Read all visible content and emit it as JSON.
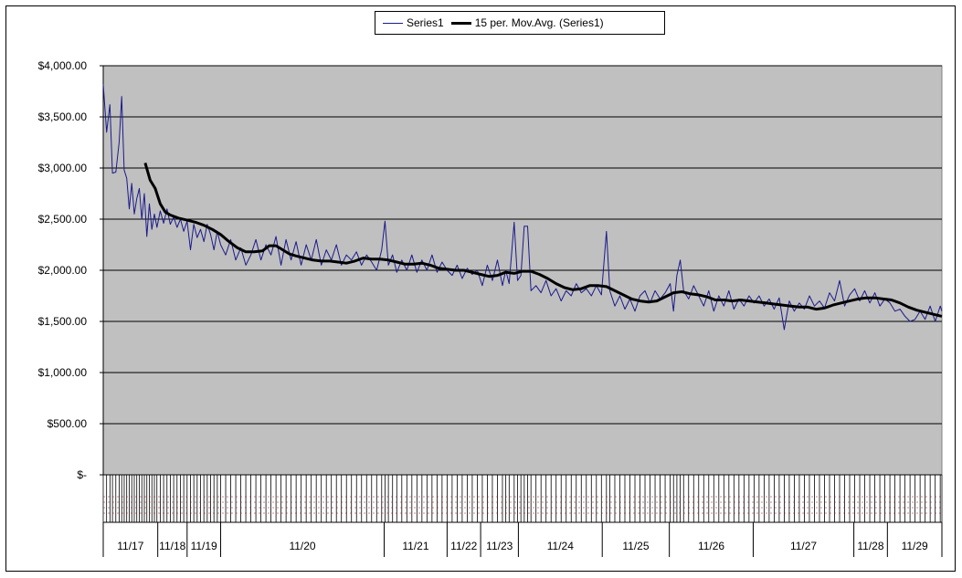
{
  "chart_data": {
    "type": "line",
    "title": "",
    "xlabel": "",
    "ylabel": "",
    "ylim": [
      0,
      4000
    ],
    "y_ticks": [
      0,
      500,
      1000,
      1500,
      2000,
      2500,
      3000,
      3500,
      4000
    ],
    "y_tick_labels": [
      "$-",
      "$500.00",
      "$1,000.00",
      "$1,500.00",
      "$2,000.00",
      "$2,500.00",
      "$3,000.00",
      "$3,500.00",
      "$4,000.00"
    ],
    "grid": true,
    "plot_background": "#c0c0c0",
    "legend_position": "top-center",
    "x_groups": [
      {
        "label": "11/17",
        "start": 0.0,
        "end": 0.065
      },
      {
        "label": "11/18",
        "start": 0.065,
        "end": 0.1
      },
      {
        "label": "11/19",
        "start": 0.1,
        "end": 0.14
      },
      {
        "label": "11/20",
        "start": 0.14,
        "end": 0.335
      },
      {
        "label": "11/21",
        "start": 0.335,
        "end": 0.41
      },
      {
        "label": "11/22",
        "start": 0.41,
        "end": 0.45
      },
      {
        "label": "11/23",
        "start": 0.45,
        "end": 0.495
      },
      {
        "label": "11/24",
        "start": 0.495,
        "end": 0.595
      },
      {
        "label": "11/25",
        "start": 0.595,
        "end": 0.675
      },
      {
        "label": "11/26",
        "start": 0.675,
        "end": 0.775
      },
      {
        "label": "11/27",
        "start": 0.775,
        "end": 0.895
      },
      {
        "label": "11/28",
        "start": 0.895,
        "end": 0.935
      },
      {
        "label": "11/29",
        "start": 0.935,
        "end": 1.0
      }
    ],
    "series": [
      {
        "name": "Series1",
        "color": "#1a1a8c",
        "points": [
          [
            0.0,
            3820
          ],
          [
            0.004,
            3350
          ],
          [
            0.008,
            3620
          ],
          [
            0.011,
            2950
          ],
          [
            0.015,
            2960
          ],
          [
            0.019,
            3250
          ],
          [
            0.022,
            3700
          ],
          [
            0.025,
            2980
          ],
          [
            0.028,
            2900
          ],
          [
            0.031,
            2600
          ],
          [
            0.034,
            2850
          ],
          [
            0.037,
            2550
          ],
          [
            0.04,
            2700
          ],
          [
            0.043,
            2800
          ],
          [
            0.046,
            2500
          ],
          [
            0.049,
            2750
          ],
          [
            0.052,
            2330
          ],
          [
            0.055,
            2650
          ],
          [
            0.058,
            2400
          ],
          [
            0.061,
            2550
          ],
          [
            0.064,
            2420
          ],
          [
            0.068,
            2580
          ],
          [
            0.072,
            2460
          ],
          [
            0.076,
            2600
          ],
          [
            0.08,
            2450
          ],
          [
            0.084,
            2520
          ],
          [
            0.088,
            2420
          ],
          [
            0.092,
            2500
          ],
          [
            0.096,
            2380
          ],
          [
            0.1,
            2480
          ],
          [
            0.104,
            2200
          ],
          [
            0.108,
            2450
          ],
          [
            0.112,
            2320
          ],
          [
            0.116,
            2400
          ],
          [
            0.12,
            2280
          ],
          [
            0.124,
            2450
          ],
          [
            0.128,
            2350
          ],
          [
            0.132,
            2200
          ],
          [
            0.136,
            2380
          ],
          [
            0.14,
            2250
          ],
          [
            0.146,
            2150
          ],
          [
            0.152,
            2300
          ],
          [
            0.158,
            2100
          ],
          [
            0.164,
            2220
          ],
          [
            0.17,
            2050
          ],
          [
            0.176,
            2150
          ],
          [
            0.182,
            2300
          ],
          [
            0.188,
            2100
          ],
          [
            0.194,
            2250
          ],
          [
            0.2,
            2150
          ],
          [
            0.206,
            2330
          ],
          [
            0.212,
            2050
          ],
          [
            0.218,
            2300
          ],
          [
            0.224,
            2100
          ],
          [
            0.23,
            2280
          ],
          [
            0.236,
            2050
          ],
          [
            0.242,
            2250
          ],
          [
            0.248,
            2100
          ],
          [
            0.254,
            2300
          ],
          [
            0.26,
            2050
          ],
          [
            0.266,
            2200
          ],
          [
            0.272,
            2100
          ],
          [
            0.278,
            2250
          ],
          [
            0.284,
            2050
          ],
          [
            0.29,
            2150
          ],
          [
            0.296,
            2100
          ],
          [
            0.302,
            2180
          ],
          [
            0.308,
            2050
          ],
          [
            0.314,
            2150
          ],
          [
            0.32,
            2080
          ],
          [
            0.326,
            2000
          ],
          [
            0.332,
            2200
          ],
          [
            0.336,
            2480
          ],
          [
            0.34,
            2050
          ],
          [
            0.345,
            2150
          ],
          [
            0.35,
            1980
          ],
          [
            0.356,
            2100
          ],
          [
            0.362,
            2000
          ],
          [
            0.368,
            2150
          ],
          [
            0.374,
            1980
          ],
          [
            0.38,
            2100
          ],
          [
            0.386,
            2000
          ],
          [
            0.392,
            2150
          ],
          [
            0.398,
            1980
          ],
          [
            0.404,
            2080
          ],
          [
            0.41,
            2000
          ],
          [
            0.416,
            1950
          ],
          [
            0.422,
            2050
          ],
          [
            0.428,
            1920
          ],
          [
            0.434,
            2020
          ],
          [
            0.44,
            1960
          ],
          [
            0.446,
            2000
          ],
          [
            0.452,
            1850
          ],
          [
            0.458,
            2050
          ],
          [
            0.464,
            1900
          ],
          [
            0.47,
            2100
          ],
          [
            0.476,
            1850
          ],
          [
            0.48,
            2000
          ],
          [
            0.484,
            1870
          ],
          [
            0.49,
            2470
          ],
          [
            0.494,
            1900
          ],
          [
            0.498,
            1950
          ],
          [
            0.502,
            2430
          ],
          [
            0.506,
            2430
          ],
          [
            0.51,
            1800
          ],
          [
            0.516,
            1850
          ],
          [
            0.522,
            1780
          ],
          [
            0.528,
            1900
          ],
          [
            0.534,
            1750
          ],
          [
            0.54,
            1820
          ],
          [
            0.546,
            1700
          ],
          [
            0.552,
            1800
          ],
          [
            0.558,
            1750
          ],
          [
            0.564,
            1870
          ],
          [
            0.57,
            1780
          ],
          [
            0.576,
            1820
          ],
          [
            0.582,
            1750
          ],
          [
            0.588,
            1850
          ],
          [
            0.594,
            1760
          ],
          [
            0.6,
            2380
          ],
          [
            0.604,
            1800
          ],
          [
            0.61,
            1650
          ],
          [
            0.616,
            1750
          ],
          [
            0.622,
            1620
          ],
          [
            0.628,
            1720
          ],
          [
            0.634,
            1600
          ],
          [
            0.64,
            1750
          ],
          [
            0.646,
            1800
          ],
          [
            0.652,
            1680
          ],
          [
            0.658,
            1800
          ],
          [
            0.664,
            1720
          ],
          [
            0.67,
            1780
          ],
          [
            0.676,
            1870
          ],
          [
            0.68,
            1600
          ],
          [
            0.684,
            1950
          ],
          [
            0.688,
            2100
          ],
          [
            0.692,
            1800
          ],
          [
            0.698,
            1720
          ],
          [
            0.704,
            1850
          ],
          [
            0.71,
            1750
          ],
          [
            0.716,
            1650
          ],
          [
            0.722,
            1800
          ],
          [
            0.728,
            1600
          ],
          [
            0.734,
            1750
          ],
          [
            0.74,
            1650
          ],
          [
            0.746,
            1800
          ],
          [
            0.752,
            1620
          ],
          [
            0.758,
            1720
          ],
          [
            0.764,
            1650
          ],
          [
            0.77,
            1750
          ],
          [
            0.776,
            1680
          ],
          [
            0.782,
            1750
          ],
          [
            0.788,
            1650
          ],
          [
            0.794,
            1720
          ],
          [
            0.8,
            1620
          ],
          [
            0.806,
            1730
          ],
          [
            0.812,
            1420
          ],
          [
            0.818,
            1700
          ],
          [
            0.824,
            1600
          ],
          [
            0.83,
            1680
          ],
          [
            0.836,
            1620
          ],
          [
            0.842,
            1750
          ],
          [
            0.848,
            1650
          ],
          [
            0.854,
            1700
          ],
          [
            0.86,
            1630
          ],
          [
            0.866,
            1780
          ],
          [
            0.872,
            1700
          ],
          [
            0.878,
            1900
          ],
          [
            0.884,
            1650
          ],
          [
            0.89,
            1760
          ],
          [
            0.896,
            1820
          ],
          [
            0.902,
            1700
          ],
          [
            0.908,
            1800
          ],
          [
            0.914,
            1680
          ],
          [
            0.92,
            1780
          ],
          [
            0.926,
            1650
          ],
          [
            0.932,
            1720
          ],
          [
            0.938,
            1680
          ],
          [
            0.944,
            1600
          ],
          [
            0.95,
            1620
          ],
          [
            0.956,
            1550
          ],
          [
            0.962,
            1500
          ],
          [
            0.968,
            1520
          ],
          [
            0.974,
            1600
          ],
          [
            0.98,
            1520
          ],
          [
            0.986,
            1650
          ],
          [
            0.992,
            1500
          ],
          [
            0.998,
            1650
          ],
          [
            1.0,
            1600
          ]
        ]
      },
      {
        "name": "15 per. Mov.Avg. (Series1)",
        "color": "#000000",
        "points": [
          [
            0.05,
            3050
          ],
          [
            0.056,
            2880
          ],
          [
            0.062,
            2800
          ],
          [
            0.068,
            2650
          ],
          [
            0.074,
            2570
          ],
          [
            0.08,
            2540
          ],
          [
            0.09,
            2510
          ],
          [
            0.1,
            2490
          ],
          [
            0.11,
            2470
          ],
          [
            0.12,
            2440
          ],
          [
            0.13,
            2400
          ],
          [
            0.14,
            2350
          ],
          [
            0.15,
            2280
          ],
          [
            0.16,
            2220
          ],
          [
            0.17,
            2180
          ],
          [
            0.18,
            2180
          ],
          [
            0.19,
            2190
          ],
          [
            0.198,
            2240
          ],
          [
            0.206,
            2240
          ],
          [
            0.214,
            2200
          ],
          [
            0.222,
            2160
          ],
          [
            0.23,
            2140
          ],
          [
            0.24,
            2120
          ],
          [
            0.25,
            2100
          ],
          [
            0.26,
            2090
          ],
          [
            0.27,
            2090
          ],
          [
            0.28,
            2080
          ],
          [
            0.29,
            2070
          ],
          [
            0.3,
            2090
          ],
          [
            0.31,
            2120
          ],
          [
            0.32,
            2110
          ],
          [
            0.33,
            2110
          ],
          [
            0.34,
            2100
          ],
          [
            0.35,
            2080
          ],
          [
            0.36,
            2060
          ],
          [
            0.37,
            2060
          ],
          [
            0.38,
            2070
          ],
          [
            0.39,
            2050
          ],
          [
            0.4,
            2020
          ],
          [
            0.41,
            2010
          ],
          [
            0.42,
            2000
          ],
          [
            0.43,
            2000
          ],
          [
            0.44,
            1980
          ],
          [
            0.45,
            1960
          ],
          [
            0.46,
            1940
          ],
          [
            0.47,
            1950
          ],
          [
            0.48,
            1980
          ],
          [
            0.49,
            1970
          ],
          [
            0.5,
            1990
          ],
          [
            0.51,
            1990
          ],
          [
            0.52,
            1960
          ],
          [
            0.53,
            1920
          ],
          [
            0.54,
            1870
          ],
          [
            0.55,
            1830
          ],
          [
            0.56,
            1810
          ],
          [
            0.57,
            1820
          ],
          [
            0.58,
            1850
          ],
          [
            0.59,
            1850
          ],
          [
            0.6,
            1840
          ],
          [
            0.61,
            1800
          ],
          [
            0.62,
            1760
          ],
          [
            0.63,
            1720
          ],
          [
            0.64,
            1700
          ],
          [
            0.65,
            1690
          ],
          [
            0.66,
            1700
          ],
          [
            0.67,
            1740
          ],
          [
            0.68,
            1780
          ],
          [
            0.69,
            1790
          ],
          [
            0.7,
            1770
          ],
          [
            0.71,
            1760
          ],
          [
            0.72,
            1740
          ],
          [
            0.73,
            1710
          ],
          [
            0.74,
            1710
          ],
          [
            0.75,
            1700
          ],
          [
            0.76,
            1710
          ],
          [
            0.77,
            1700
          ],
          [
            0.78,
            1690
          ],
          [
            0.79,
            1680
          ],
          [
            0.8,
            1670
          ],
          [
            0.81,
            1660
          ],
          [
            0.82,
            1650
          ],
          [
            0.83,
            1640
          ],
          [
            0.84,
            1640
          ],
          [
            0.85,
            1620
          ],
          [
            0.86,
            1630
          ],
          [
            0.87,
            1660
          ],
          [
            0.88,
            1680
          ],
          [
            0.89,
            1700
          ],
          [
            0.9,
            1720
          ],
          [
            0.91,
            1730
          ],
          [
            0.92,
            1730
          ],
          [
            0.93,
            1720
          ],
          [
            0.94,
            1710
          ],
          [
            0.95,
            1680
          ],
          [
            0.96,
            1640
          ],
          [
            0.97,
            1610
          ],
          [
            0.98,
            1590
          ],
          [
            0.99,
            1570
          ],
          [
            1.0,
            1550
          ]
        ]
      }
    ]
  },
  "legend": {
    "series1_label": "Series1",
    "series1_color": "#1a1a8c",
    "movavg_label": "15 per. Mov.Avg. (Series1)",
    "movavg_color": "#000000"
  }
}
